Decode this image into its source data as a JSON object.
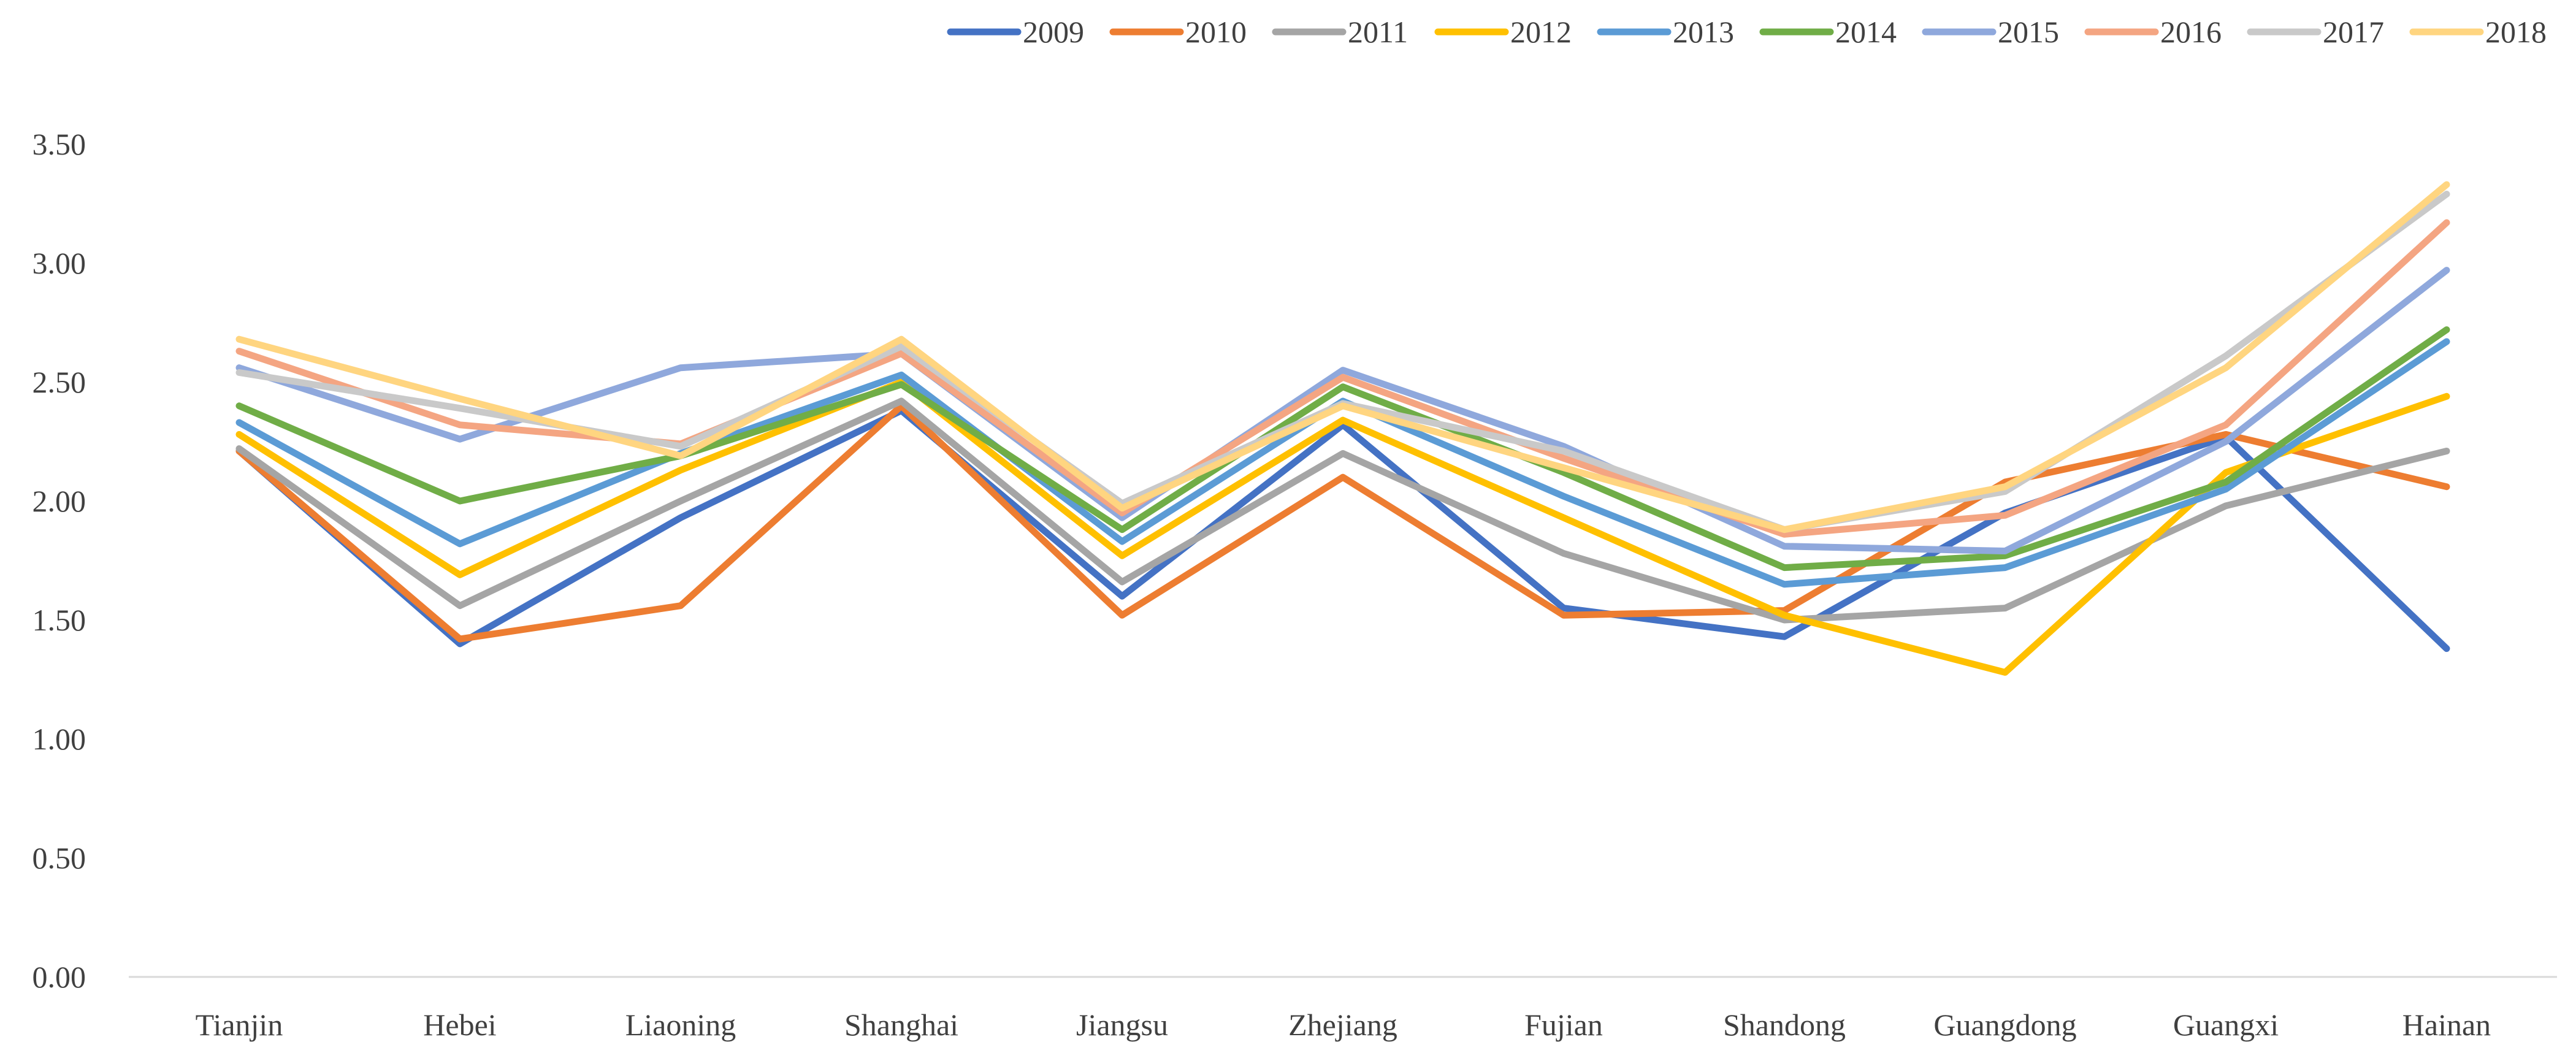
{
  "chart_data": {
    "type": "line",
    "title": "",
    "xlabel": "",
    "ylabel": "",
    "categories": [
      "Tianjin",
      "Hebei",
      "Liaoning",
      "Shanghai",
      "Jiangsu",
      "Zhejiang",
      "Fujian",
      "Shandong",
      "Guangdong",
      "Guangxi",
      "Hainan"
    ],
    "ylim": [
      0,
      3.5
    ],
    "yticks": [
      "0.00",
      "0.50",
      "1.00",
      "1.50",
      "2.00",
      "2.50",
      "3.00",
      "3.50"
    ],
    "grid": false,
    "legend_position": "top-right",
    "series": [
      {
        "name": "2009",
        "color": "#4472C4",
        "values": [
          2.21,
          1.4,
          1.93,
          2.38,
          1.6,
          2.32,
          1.55,
          1.43,
          1.95,
          2.27,
          1.38
        ]
      },
      {
        "name": "2010",
        "color": "#ED7D31",
        "values": [
          2.21,
          1.42,
          1.56,
          2.4,
          1.52,
          2.1,
          1.52,
          1.54,
          2.08,
          2.28,
          2.06
        ]
      },
      {
        "name": "2011",
        "color": "#A5A5A5",
        "values": [
          2.22,
          1.56,
          2.0,
          2.42,
          1.66,
          2.2,
          1.78,
          1.5,
          1.55,
          1.98,
          2.21
        ]
      },
      {
        "name": "2012",
        "color": "#FFC000",
        "values": [
          2.28,
          1.69,
          2.13,
          2.5,
          1.77,
          2.34,
          1.93,
          1.52,
          1.28,
          2.12,
          2.44
        ]
      },
      {
        "name": "2013",
        "color": "#5B9BD5",
        "values": [
          2.33,
          1.82,
          2.2,
          2.53,
          1.83,
          2.42,
          2.02,
          1.65,
          1.72,
          2.05,
          2.67
        ]
      },
      {
        "name": "2014",
        "color": "#70AD47",
        "values": [
          2.4,
          2.0,
          2.19,
          2.49,
          1.88,
          2.48,
          2.12,
          1.72,
          1.77,
          2.08,
          2.72
        ]
      },
      {
        "name": "2015",
        "color": "#8FA8DC",
        "values": [
          2.56,
          2.26,
          2.56,
          2.62,
          1.93,
          2.55,
          2.23,
          1.81,
          1.79,
          2.25,
          2.97
        ]
      },
      {
        "name": "2016",
        "color": "#F4A582",
        "values": [
          2.63,
          2.32,
          2.24,
          2.62,
          1.95,
          2.52,
          2.18,
          1.86,
          1.94,
          2.32,
          3.17
        ]
      },
      {
        "name": "2017",
        "color": "#C9C9C9",
        "values": [
          2.54,
          2.39,
          2.23,
          2.65,
          1.99,
          2.41,
          2.21,
          1.88,
          2.04,
          2.61,
          3.29
        ]
      },
      {
        "name": "2018",
        "color": "#FFD580",
        "values": [
          2.68,
          2.43,
          2.19,
          2.68,
          1.97,
          2.4,
          2.14,
          1.88,
          2.06,
          2.56,
          3.33
        ]
      }
    ]
  }
}
